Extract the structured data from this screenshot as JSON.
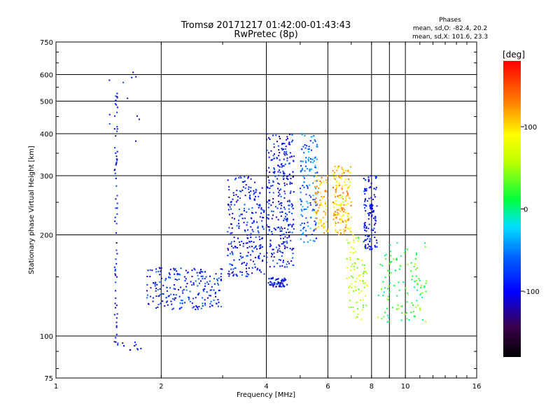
{
  "chart_data": {
    "type": "scatter",
    "title": "Tromsø 20171217 01:42:00-01:43:43",
    "subtitle": "RwPretec (8p)",
    "stats": {
      "heading": "Phases",
      "line1": "mean, sd,O: -82.4, 20.2",
      "line2": "mean, sd,X: 101.6, 23.3"
    },
    "xlabel": "Frequency [MHz]",
    "ylabel": "Stationary phase Virtual Height [km]",
    "x_scale": "log",
    "y_scale": "log",
    "xlim": [
      1,
      16
    ],
    "ylim": [
      75,
      750
    ],
    "x_ticks": [
      1,
      2,
      4,
      6,
      8,
      10,
      16
    ],
    "x_gridlines": [
      2,
      4,
      6,
      8,
      9,
      10
    ],
    "y_ticks": [
      75,
      100,
      200,
      300,
      400,
      500,
      600,
      750
    ],
    "y_gridlines": [
      100,
      200,
      300,
      400,
      500,
      600
    ],
    "grid": true,
    "colorbar": {
      "label": "[deg]",
      "range": [
        -180,
        180
      ],
      "ticks": [
        100,
        0,
        -100
      ]
    },
    "clusters": [
      {
        "name": "1.5MHz column",
        "freq": [
          1.47,
          1.5
        ],
        "height": [
          95,
          560
        ],
        "phase_mean": -105,
        "count": 70
      },
      {
        "name": "low-band upper",
        "freq": [
          1.4,
          1.75
        ],
        "height": [
          380,
          610
        ],
        "phase_mean": -100,
        "count": 12
      },
      {
        "name": "low-band floor",
        "freq": [
          1.5,
          1.75
        ],
        "height": [
          90,
          96
        ],
        "phase_mean": -100,
        "count": 12
      },
      {
        "name": "ramp 1.8-3 MHz",
        "freq": [
          1.82,
          3.0
        ],
        "height": [
          120,
          160
        ],
        "phase_mean": -90,
        "count": 220
      },
      {
        "name": "3.2-4 MHz cloud",
        "freq": [
          3.1,
          3.95
        ],
        "height": [
          150,
          300
        ],
        "phase_mean": -95,
        "count": 260
      },
      {
        "name": "4-4.8 MHz cloud",
        "freq": [
          4.0,
          4.8
        ],
        "height": [
          160,
          400
        ],
        "phase_mean": -95,
        "count": 300
      },
      {
        "name": "4.1-4.6 lower band",
        "freq": [
          4.05,
          4.6
        ],
        "height": [
          140,
          150
        ],
        "phase_mean": -100,
        "count": 60
      },
      {
        "name": "5-5.6 MHz cloud",
        "freq": [
          5.0,
          5.6
        ],
        "height": [
          190,
          400
        ],
        "phase_mean": -60,
        "count": 150
      },
      {
        "name": "5.5-6 MHz X-mode",
        "freq": [
          5.5,
          6.0
        ],
        "height": [
          200,
          300
        ],
        "phase_mean": 110,
        "count": 80
      },
      {
        "name": "6.2-7 MHz X-mode",
        "freq": [
          6.2,
          7.0
        ],
        "height": [
          200,
          320
        ],
        "phase_mean": 110,
        "count": 170
      },
      {
        "name": "6.8-7.8 MHz lower",
        "freq": [
          6.8,
          7.8
        ],
        "height": [
          110,
          200
        ],
        "phase_mean": 60,
        "count": 90
      },
      {
        "name": "7.6-8.3 MHz cloud",
        "freq": [
          7.6,
          8.3
        ],
        "height": [
          180,
          300
        ],
        "phase_mean": -100,
        "count": 130
      },
      {
        "name": "8.3-12 MHz lower",
        "freq": [
          8.3,
          11.5
        ],
        "height": [
          110,
          190
        ],
        "phase_mean": 20,
        "count": 120
      }
    ]
  }
}
